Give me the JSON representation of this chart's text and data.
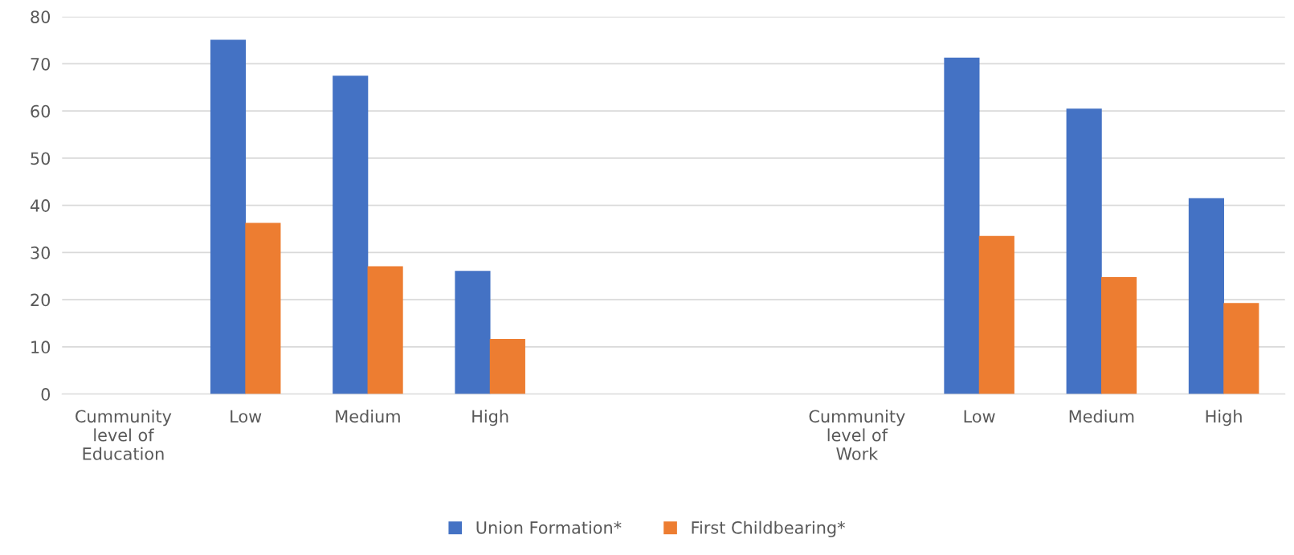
{
  "chart_data": {
    "type": "bar",
    "categories": [
      "Cummunity\nlevel of\nEducation",
      "Low",
      "Medium",
      "High",
      null,
      null,
      "Cummunity\nlevel of\nWork",
      "Low",
      "Medium",
      "High"
    ],
    "series": [
      {
        "name": "Union Formation*",
        "color": "#4472c4",
        "values": [
          null,
          75.1,
          67.5,
          26.1,
          null,
          null,
          null,
          71.3,
          60.5,
          41.5
        ]
      },
      {
        "name": "First Childbearing*",
        "color": "#ed7d31",
        "values": [
          null,
          36.3,
          27.1,
          11.7,
          null,
          null,
          null,
          33.5,
          24.8,
          19.3
        ]
      }
    ],
    "ylim": [
      0,
      80
    ],
    "yticks": [
      0,
      10,
      20,
      30,
      40,
      50,
      60,
      70,
      80
    ],
    "grid": "y",
    "legend": "bottom"
  }
}
